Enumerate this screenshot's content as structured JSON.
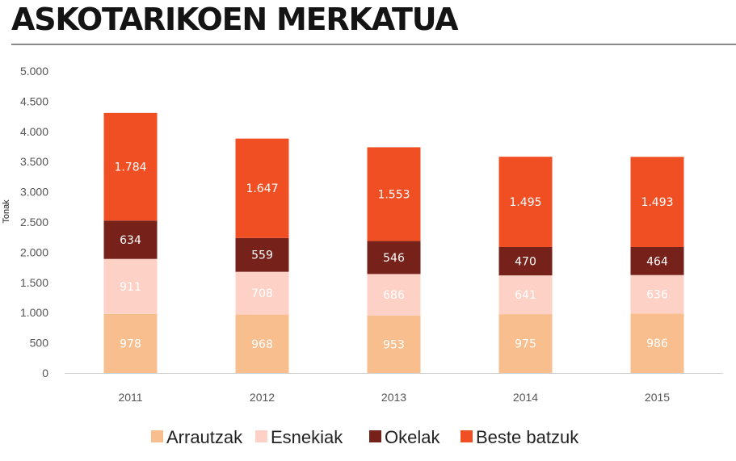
{
  "header": {
    "title": "ASKOTARIKOEN MERKATUA"
  },
  "chart_data": {
    "type": "bar",
    "stacked": true,
    "title": "ASKOTARIKOEN MERKATUA",
    "ylabel": "Tonak",
    "ylim": [
      0,
      5000
    ],
    "yticks": [
      0,
      500,
      1000,
      1500,
      2000,
      2500,
      3000,
      3500,
      4000,
      4500,
      5000
    ],
    "ytick_labels": [
      "0",
      "500",
      "1.000",
      "1.500",
      "2.000",
      "2.500",
      "3.000",
      "3.500",
      "4.000",
      "4.500",
      "5.000"
    ],
    "grid": false,
    "legend_position": "bottom",
    "categories": [
      "2011",
      "2012",
      "2013",
      "2014",
      "2015"
    ],
    "series": [
      {
        "name": "Arrautzak",
        "color": "#F9BE8E",
        "label_color": "#ffffff",
        "values": [
          978,
          968,
          953,
          975,
          986
        ],
        "labels": [
          "978",
          "968",
          "953",
          "975",
          "986"
        ]
      },
      {
        "name": "Esnekiak",
        "color": "#FDD1C6",
        "label_color": "#ffffff",
        "values": [
          911,
          708,
          686,
          641,
          636
        ],
        "labels": [
          "911",
          "708",
          "686",
          "641",
          "636"
        ]
      },
      {
        "name": "Okelak",
        "color": "#762119",
        "label_color": "#ffffff",
        "values": [
          634,
          559,
          546,
          470,
          464
        ],
        "labels": [
          "634",
          "559",
          "546",
          "470",
          "464"
        ]
      },
      {
        "name": "Beste batzuk",
        "color": "#F04E23",
        "label_color": "#ffffff",
        "values": [
          1784,
          1647,
          1553,
          1495,
          1493
        ],
        "labels": [
          "1.784",
          "1.647",
          "1.553",
          "1.495",
          "1.493"
        ]
      }
    ]
  }
}
